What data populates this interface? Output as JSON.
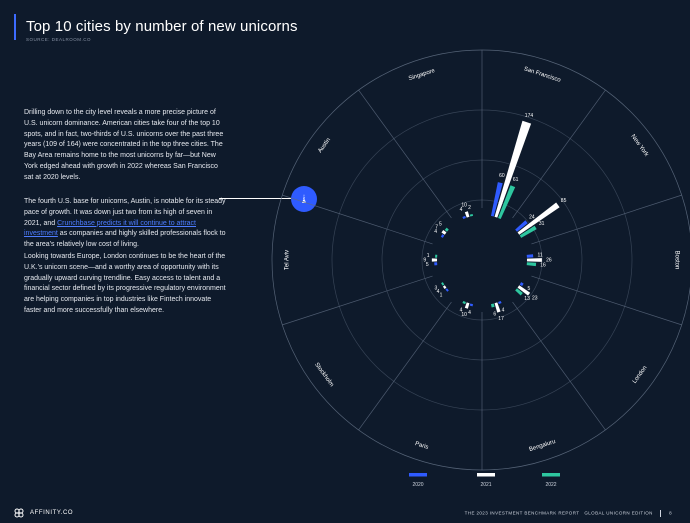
{
  "header": {
    "title": "Top 10 cities by number of new unicorns",
    "source": "SOURCE: DEALROOM.CO"
  },
  "body": {
    "p1": "Drilling down to the city level reveals a more precise picture of U.S. unicorn dominance. American cities take four of the top 10 spots, and in fact, two-thirds of U.S. unicorns over the past three years (109 of 164) were concentrated in the top three cities. The Bay Area remains home to the most unicorns by far—but New York edged ahead with growth in 2022 whereas San Francisco sat at 2020 levels.",
    "p2_before": "The fourth U.S. base for unicorns, Austin, is notable for its steady pace of growth. It was down just two from its high of seven in 2021, and ",
    "p2_link": "Crunchbase predicts it will continue to attract investment",
    "p2_after": " as companies and highly skilled professionals flock to the area's relatively low cost of living.",
    "p3": "Looking towards Europe, London continues to be the heart of the U.K.'s unicorn scene—and a worthy area of opportunity with its gradually upward curving trendline. Easy access to talent and a financial sector defined by its progressive regulatory environment are helping companies in top industries like Fintech innovate faster and more successfully than elsewhere."
  },
  "colors": {
    "background": "#0e1a2b",
    "s2020": "#2f5bff",
    "s2021": "#ffffff",
    "s2022": "#2ec7a0",
    "grid": "#5d6b80"
  },
  "chart_data": {
    "type": "bar",
    "layout": "radial",
    "title": "Top 10 cities by number of new unicorns",
    "categories": [
      "San Francisco",
      "New York",
      "Boston",
      "London",
      "Bengaluru",
      "Paris",
      "Stockholm",
      "Tel Aviv",
      "Austin",
      "Singapore"
    ],
    "series": [
      {
        "name": "2020",
        "values": [
          60,
          24,
          11,
          5,
          4,
          4,
          1,
          5,
          4,
          4
        ]
      },
      {
        "name": "2021",
        "values": [
          174,
          85,
          26,
          23,
          17,
          10,
          4,
          9,
          7,
          10
        ]
      },
      {
        "name": "2022",
        "values": [
          61,
          31,
          16,
          13,
          6,
          4,
          3,
          1,
          5,
          2
        ]
      }
    ],
    "value_labels": [
      [
        "60",
        "174",
        "61"
      ],
      [
        "24",
        "85",
        "31"
      ],
      [
        "11",
        "26",
        "16"
      ],
      [
        "5",
        "23",
        "13"
      ],
      [
        "4",
        "17",
        "6"
      ],
      [
        "4",
        "10",
        "4"
      ],
      [
        "1",
        "4",
        "3"
      ],
      [
        "5",
        "9",
        "1"
      ],
      [
        "4",
        "7",
        "5"
      ],
      [
        "4",
        "10",
        "2"
      ]
    ],
    "highlighted_category": "Austin",
    "legend": [
      "2020",
      "2021",
      "2022"
    ],
    "legend_position": "bottom"
  },
  "footer": {
    "brand": "AFFINITY.CO",
    "report": "THE 2023 INVESTMENT BENCHMARK REPORT",
    "edition": "GLOBAL UNICORN EDITION",
    "page": "8"
  }
}
